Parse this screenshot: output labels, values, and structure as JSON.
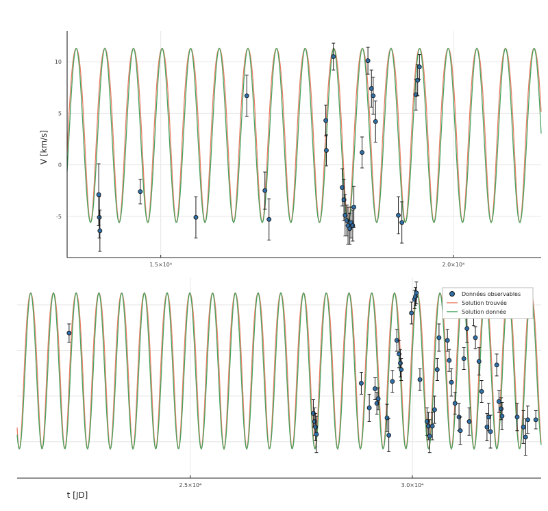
{
  "chart_data": [
    {
      "type": "line",
      "title": "",
      "ylabel": "V [km/s]",
      "xlabel": "",
      "xlim": [
        13400,
        21500
      ],
      "ylim": [
        -9,
        13
      ],
      "xticks": [
        15000,
        20000
      ],
      "xtick_labels": [
        "1.5×10⁴",
        "2.0×10⁴"
      ],
      "yticks": [
        -5,
        0,
        5,
        10
      ],
      "ytick_labels": [
        "-5",
        "0",
        "5",
        "10"
      ],
      "grid": true,
      "model": {
        "period": 489,
        "phase_x": 13800,
        "min": -5.6,
        "max": 11.3
      },
      "series": [
        {
          "kind": "line",
          "color": "#e8775e"
        },
        {
          "kind": "line",
          "color": "#3ea05a"
        },
        {
          "kind": "scatter",
          "color": "#2f6fa8",
          "points": [
            [
              13940,
              -2.9
            ],
            [
              13950,
              -5.1
            ],
            [
              13960,
              -6.4
            ],
            [
              14650,
              -2.6
            ],
            [
              15600,
              -5.1
            ],
            [
              16470,
              6.7
            ],
            [
              16780,
              -2.5
            ],
            [
              16850,
              -5.3
            ],
            [
              17820,
              4.3
            ],
            [
              17830,
              1.4
            ],
            [
              17950,
              10.5
            ],
            [
              18100,
              -2.2
            ],
            [
              18130,
              -3.4
            ],
            [
              18150,
              -4.9
            ],
            [
              18180,
              -5.4
            ],
            [
              18200,
              -5.9
            ],
            [
              18230,
              -6.2
            ],
            [
              18250,
              -5.6
            ],
            [
              18280,
              -5.9
            ],
            [
              18300,
              -4.1
            ],
            [
              18440,
              1.2
            ],
            [
              18540,
              10.1
            ],
            [
              18600,
              7.4
            ],
            [
              18630,
              6.7
            ],
            [
              18670,
              4.2
            ],
            [
              19060,
              -4.9
            ],
            [
              19120,
              -5.6
            ],
            [
              19360,
              6.8
            ],
            [
              19390,
              8.2
            ],
            [
              19420,
              9.5
            ]
          ],
          "errors": [
            3.0,
            2.0,
            2.0,
            1.2,
            2.0,
            2.0,
            1.8,
            2.0,
            1.5,
            1.5,
            1.3,
            1.8,
            2.0,
            2.0,
            1.5,
            1.8,
            1.5,
            1.5,
            1.5,
            2.0,
            1.5,
            1.3,
            1.8,
            1.8,
            2.0,
            1.8,
            2.0,
            1.5,
            1.5,
            1.2
          ]
        }
      ]
    },
    {
      "type": "line",
      "title": "",
      "ylabel": "",
      "xlabel": "t [JD]",
      "xlim": [
        21100,
        32900
      ],
      "ylim": [
        -9,
        13
      ],
      "xticks": [
        25000,
        30000
      ],
      "xtick_labels": [
        "2.5×10⁴",
        "3.0×10⁴"
      ],
      "yticks": [
        -5,
        0,
        5,
        10
      ],
      "grid": true,
      "model": {
        "period": 512,
        "phase_x": 21150,
        "min": -5.8,
        "max": 11.3
      },
      "series": [
        {
          "kind": "scatter",
          "name": "Données observables",
          "color": "#2f6fa8",
          "points": [
            [
              22270,
              6.9
            ],
            [
              27770,
              -1.9
            ],
            [
              27800,
              -2.8
            ],
            [
              27820,
              -3.4
            ],
            [
              27840,
              -4.2
            ],
            [
              28850,
              1.4
            ],
            [
              29030,
              -1.3
            ],
            [
              29160,
              0.8
            ],
            [
              29200,
              -0.8
            ],
            [
              29230,
              -0.3
            ],
            [
              29430,
              -2.4
            ],
            [
              29470,
              -4.3
            ],
            [
              29550,
              1.6
            ],
            [
              29650,
              6.1
            ],
            [
              29700,
              4.6
            ],
            [
              29730,
              3.6
            ],
            [
              29750,
              2.9
            ],
            [
              29980,
              9.1
            ],
            [
              30050,
              10.6
            ],
            [
              30070,
              10.9
            ],
            [
              30090,
              11.3
            ],
            [
              30170,
              1.8
            ],
            [
              30330,
              -2.8
            ],
            [
              30360,
              -3.3
            ],
            [
              30390,
              -4.4
            ],
            [
              30450,
              -3.3
            ],
            [
              30500,
              -1.5
            ],
            [
              30560,
              2.9
            ],
            [
              30600,
              6.4
            ],
            [
              30790,
              6.1
            ],
            [
              30830,
              3.9
            ],
            [
              30880,
              1.5
            ],
            [
              30960,
              -0.8
            ],
            [
              31050,
              -2.3
            ],
            [
              31080,
              -3.8
            ],
            [
              31160,
              4.1
            ],
            [
              31230,
              7.4
            ],
            [
              31280,
              -2.8
            ],
            [
              31380,
              8.9
            ],
            [
              31420,
              6.4
            ],
            [
              31500,
              3.8
            ],
            [
              31560,
              0.5
            ],
            [
              31680,
              -3.4
            ],
            [
              31720,
              -2.3
            ],
            [
              31760,
              -3.9
            ],
            [
              31900,
              3.4
            ],
            [
              31950,
              -0.6
            ],
            [
              32000,
              -1.4
            ],
            [
              32020,
              -2.2
            ],
            [
              32360,
              -2.3
            ],
            [
              32500,
              -3.4
            ],
            [
              32550,
              -4.5
            ],
            [
              32600,
              -2.6
            ],
            [
              32780,
              -2.6
            ]
          ],
          "errors": [
            1.0,
            1.5,
            1.5,
            1.5,
            2.0,
            1.2,
            1.5,
            1.2,
            1.2,
            1.2,
            1.5,
            1.8,
            1.2,
            1.2,
            1.5,
            1.5,
            1.2,
            1.2,
            1.0,
            1.0,
            1.2,
            1.2,
            1.5,
            1.5,
            1.8,
            1.5,
            1.5,
            1.2,
            1.5,
            1.2,
            1.2,
            1.5,
            1.2,
            1.5,
            1.5,
            1.2,
            1.5,
            1.5,
            1.2,
            1.2,
            1.5,
            1.2,
            1.5,
            1.5,
            1.8,
            1.2,
            1.2,
            1.2,
            1.5,
            1.5,
            1.8,
            2.0,
            1.5,
            1.0
          ]
        },
        {
          "kind": "line",
          "name": "Solution trouvée",
          "color": "#e8775e"
        },
        {
          "kind": "line",
          "name": "Solution donnée",
          "color": "#3ea05a"
        }
      ],
      "legend_position": "top-right"
    }
  ]
}
